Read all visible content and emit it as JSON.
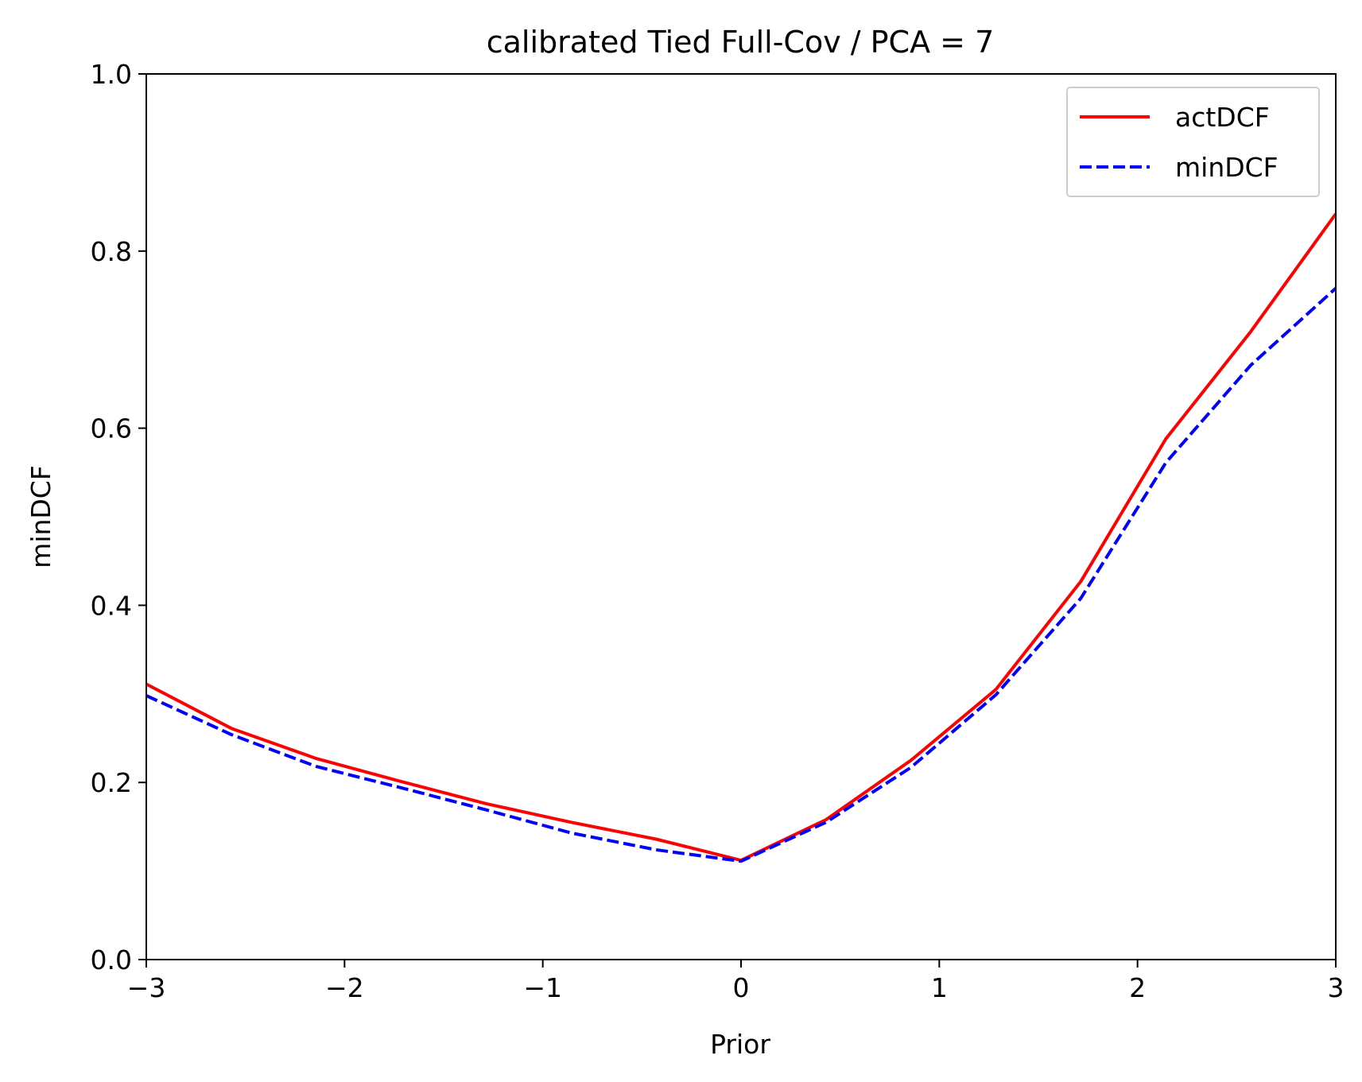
{
  "chart_data": {
    "type": "line",
    "title": "calibrated Tied Full-Cov / PCA = 7",
    "xlabel": "Prior",
    "ylabel": "minDCF",
    "xlim": [
      -3,
      3
    ],
    "ylim": [
      0.0,
      1.0
    ],
    "x_ticks": [
      -3,
      -2,
      -1,
      0,
      1,
      2,
      3
    ],
    "x_tick_labels": [
      "−3",
      "−2",
      "−1",
      "0",
      "1",
      "2",
      "3"
    ],
    "y_ticks": [
      0.0,
      0.2,
      0.4,
      0.6,
      0.8,
      1.0
    ],
    "y_tick_labels": [
      "0.0",
      "0.2",
      "0.4",
      "0.6",
      "0.8",
      "1.0"
    ],
    "grid": false,
    "legend_position": "top-right",
    "x": [
      -3.0,
      -2.571,
      -2.143,
      -1.714,
      -1.286,
      -0.857,
      -0.429,
      0.0,
      0.429,
      0.857,
      1.286,
      1.714,
      2.143,
      2.571,
      3.0
    ],
    "series": [
      {
        "name": "actDCF",
        "color": "#ff0000",
        "style": "solid",
        "values": [
          0.311,
          0.261,
          0.227,
          0.201,
          0.176,
          0.155,
          0.136,
          0.112,
          0.158,
          0.225,
          0.305,
          0.427,
          0.588,
          0.709,
          0.842
        ]
      },
      {
        "name": "minDCF",
        "color": "#0000ff",
        "style": "dashed",
        "values": [
          0.298,
          0.254,
          0.218,
          0.194,
          0.169,
          0.143,
          0.124,
          0.111,
          0.155,
          0.217,
          0.299,
          0.408,
          0.561,
          0.671,
          0.758
        ]
      }
    ]
  }
}
